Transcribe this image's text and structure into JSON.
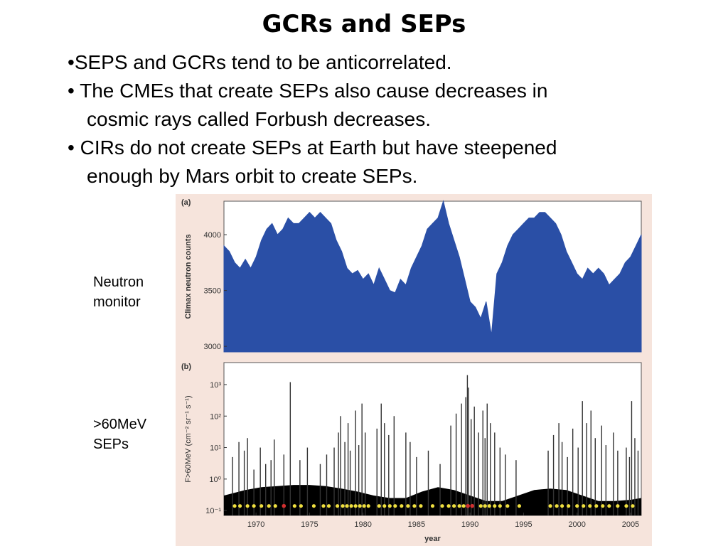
{
  "slide": {
    "title": "GCRs and SEPs",
    "bullets": [
      {
        "marker": "•",
        "lines": [
          "SEPS and GCRs tend to be anticorrelated."
        ]
      },
      {
        "marker": "•",
        "lines": [
          "The CMEs that create SEPs also cause decreases in",
          "cosmic rays called Forbush decreases."
        ]
      },
      {
        "marker": "•",
        "lines": [
          "CIRs do not create SEPs at Earth but have steepened",
          "enough by Mars orbit to create SEPs."
        ]
      }
    ],
    "labels": {
      "neutron": [
        "Neutron",
        "monitor"
      ],
      "sep": [
        ">60MeV",
        "SEPs"
      ]
    }
  },
  "colors": {
    "figure_background": "#f6e4dc",
    "neutron_fill": "#2a4fa6",
    "sep_spikes": "#333333",
    "sep_background_fill": "#000000",
    "marker_yellow": "#f0e040",
    "marker_red": "#d23030"
  },
  "chart_data": [
    {
      "type": "area",
      "panel_label": "(a)",
      "ylabel": "Climax neutron counts",
      "xlim": [
        1967,
        2006
      ],
      "ylim": [
        2950,
        4300
      ],
      "yticks": [
        3000,
        3500,
        4000
      ],
      "x": [
        1967.0,
        1967.5,
        1968.0,
        1968.5,
        1969.0,
        1969.5,
        1970.0,
        1970.5,
        1971.0,
        1971.5,
        1972.0,
        1972.5,
        1973.0,
        1973.5,
        1974.0,
        1974.5,
        1975.0,
        1975.5,
        1976.0,
        1976.5,
        1977.0,
        1977.5,
        1978.0,
        1978.5,
        1979.0,
        1979.5,
        1980.0,
        1980.5,
        1981.0,
        1981.5,
        1982.0,
        1982.5,
        1983.0,
        1983.5,
        1984.0,
        1984.5,
        1985.0,
        1985.5,
        1986.0,
        1986.5,
        1987.0,
        1987.5,
        1988.0,
        1988.5,
        1989.0,
        1989.5,
        1990.0,
        1990.5,
        1991.0,
        1991.5,
        1992.0,
        1992.5,
        1993.0,
        1993.5,
        1994.0,
        1994.5,
        1995.0,
        1995.5,
        1996.0,
        1996.5,
        1997.0,
        1997.5,
        1998.0,
        1998.5,
        1999.0,
        1999.5,
        2000.0,
        2000.5,
        2001.0,
        2001.5,
        2002.0,
        2002.5,
        2003.0,
        2003.5,
        2004.0,
        2004.5,
        2005.0,
        2005.5,
        2006.0
      ],
      "values": [
        3900,
        3850,
        3750,
        3700,
        3780,
        3700,
        3800,
        3950,
        4050,
        4100,
        4000,
        4050,
        4150,
        4100,
        4100,
        4150,
        4200,
        4150,
        4200,
        4150,
        4100,
        3950,
        3850,
        3700,
        3650,
        3680,
        3600,
        3650,
        3550,
        3700,
        3600,
        3500,
        3480,
        3600,
        3550,
        3700,
        3800,
        3900,
        4050,
        4100,
        4150,
        4300,
        4100,
        3950,
        3800,
        3600,
        3400,
        3350,
        3250,
        3400,
        3100,
        3650,
        3750,
        3900,
        4000,
        4050,
        4100,
        4150,
        4150,
        4200,
        4200,
        4150,
        4100,
        4000,
        3850,
        3750,
        3650,
        3600,
        3700,
        3650,
        3700,
        3650,
        3550,
        3600,
        3650,
        3750,
        3800,
        3900,
        4000
      ]
    },
    {
      "type": "bar",
      "panel_label": "(b)",
      "xlabel": "year",
      "ylabel": "F>60MeV (cm⁻² sr⁻¹ s⁻¹)",
      "yscale": "log",
      "xlim": [
        1967,
        2006
      ],
      "ylim": [
        0.07,
        5000
      ],
      "yticks": [
        "10⁻¹",
        "10⁰",
        "10¹",
        "10²",
        "10³"
      ],
      "ytick_values": [
        0.1,
        1,
        10,
        100,
        1000
      ],
      "xticks": [
        "1970",
        "1975",
        "1980",
        "1985",
        "1990",
        "1995",
        "2000",
        "2005"
      ],
      "xtick_values": [
        1970,
        1975,
        1980,
        1985,
        1990,
        1995,
        2000,
        2005
      ],
      "events_x": [
        1967.8,
        1968.4,
        1968.9,
        1969.2,
        1969.8,
        1970.4,
        1970.9,
        1971.4,
        1971.7,
        1972.6,
        1973.2,
        1974.1,
        1974.8,
        1976.0,
        1976.6,
        1977.3,
        1977.7,
        1977.9,
        1978.3,
        1978.6,
        1978.8,
        1979.3,
        1979.6,
        1979.9,
        1980.2,
        1981.3,
        1981.7,
        1982.0,
        1982.4,
        1982.9,
        1984.0,
        1984.4,
        1985.0,
        1986.1,
        1987.2,
        1988.2,
        1988.7,
        1989.2,
        1989.6,
        1989.75,
        1989.85,
        1990.1,
        1990.4,
        1990.8,
        1991.2,
        1991.4,
        1991.6,
        1991.9,
        1992.3,
        1992.8,
        1993.3,
        1994.3,
        1997.3,
        1997.8,
        1998.3,
        1998.6,
        1999.1,
        1999.6,
        2000.1,
        2000.5,
        2000.9,
        2001.3,
        2001.7,
        2002.3,
        2002.7,
        2003.4,
        2003.8,
        2004.6,
        2004.9,
        2005.1,
        2005.4,
        2005.7
      ],
      "events_peak": [
        5,
        15,
        8,
        20,
        2,
        10,
        3,
        4,
        18,
        6,
        1200,
        4,
        10,
        3,
        6,
        10,
        30,
        100,
        15,
        60,
        8,
        150,
        12,
        250,
        30,
        40,
        250,
        60,
        25,
        100,
        30,
        15,
        5,
        8,
        3,
        50,
        120,
        250,
        400,
        2000,
        800,
        80,
        200,
        30,
        150,
        20,
        250,
        60,
        30,
        10,
        6,
        4,
        8,
        25,
        60,
        15,
        5,
        40,
        10,
        300,
        60,
        150,
        20,
        50,
        12,
        30,
        8,
        10,
        5,
        300,
        20,
        8
      ],
      "background_envelope_x": [
        1967,
        1969,
        1970.5,
        1972,
        1973.5,
        1975,
        1976.5,
        1978,
        1979.5,
        1981,
        1982.5,
        1984,
        1985.5,
        1987,
        1988.5,
        1990,
        1991.5,
        1993,
        1994.5,
        1996,
        1997.5,
        1999,
        2000.5,
        2002,
        2003.5,
        2005,
        2006
      ],
      "background_envelope": [
        0.3,
        0.45,
        0.55,
        0.6,
        0.65,
        0.65,
        0.6,
        0.5,
        0.4,
        0.3,
        0.25,
        0.25,
        0.4,
        0.55,
        0.45,
        0.3,
        0.2,
        0.2,
        0.3,
        0.45,
        0.5,
        0.45,
        0.3,
        0.2,
        0.2,
        0.22,
        0.25
      ],
      "yellow_markers_x": [
        1968.0,
        1968.5,
        1969.2,
        1969.8,
        1970.5,
        1971.2,
        1971.8,
        1973.6,
        1974.2,
        1975.4,
        1976.3,
        1976.8,
        1977.6,
        1978.1,
        1978.5,
        1978.9,
        1979.3,
        1979.7,
        1980.1,
        1980.5,
        1981.5,
        1982.0,
        1982.5,
        1983.0,
        1983.6,
        1984.2,
        1984.8,
        1985.4,
        1986.5,
        1987.4,
        1988.0,
        1988.5,
        1989.0,
        1989.4,
        1991.0,
        1991.4,
        1991.8,
        1992.3,
        1992.8,
        1993.5,
        1994.6,
        1997.5,
        1998.1,
        1998.6,
        1999.2,
        2000.0,
        2000.6,
        2001.2,
        2001.8,
        2002.4,
        2003.0,
        2003.8,
        2004.6,
        2005.2
      ],
      "red_markers_x": [
        1972.6,
        1989.8,
        1990.2
      ]
    }
  ]
}
